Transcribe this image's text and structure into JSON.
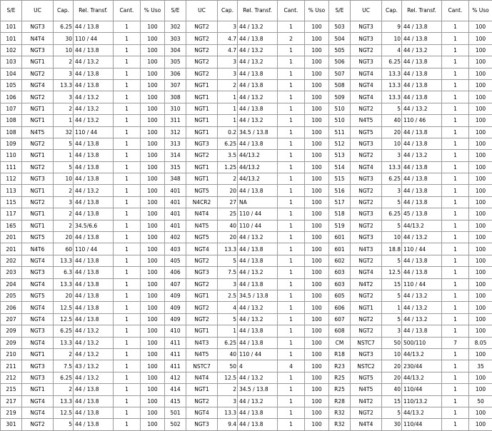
{
  "table": {
    "columns": [
      "S/E",
      "UC",
      "Cap.",
      "Rel. Transf.",
      "Cant.",
      "% Uso"
    ],
    "rows": [
      [
        "101",
        "NGT3",
        "6.25",
        "44 / 13.8",
        "1",
        "100",
        "302",
        "NGT2",
        "3",
        "44 / 13.2",
        "1",
        "100",
        "503",
        "NGT3",
        "9",
        "44 / 13.8",
        "1",
        "100"
      ],
      [
        "101",
        "N4T4",
        "30",
        "110 / 44",
        "1",
        "100",
        "303",
        "NGT2",
        "4.7",
        "44 / 13.8",
        "2",
        "100",
        "504",
        "NGT3",
        "10",
        "44 / 13.8",
        "1",
        "100"
      ],
      [
        "102",
        "NGT3",
        "10",
        "44 / 13.8",
        "1",
        "100",
        "304",
        "NGT2",
        "4.7",
        "44 / 13.2",
        "1",
        "100",
        "505",
        "NGT2",
        "4",
        "44 / 13.2",
        "1",
        "100"
      ],
      [
        "103",
        "NGT1",
        "2",
        "44 / 13.2",
        "1",
        "100",
        "305",
        "NGT2",
        "3",
        "44 / 13.2",
        "1",
        "100",
        "506",
        "NGT3",
        "6.25",
        "44 / 13.8",
        "1",
        "100"
      ],
      [
        "104",
        "NGT2",
        "3",
        "44 / 13.8",
        "1",
        "100",
        "306",
        "NGT2",
        "3",
        "44 / 13.8",
        "1",
        "100",
        "507",
        "NGT4",
        "13.3",
        "44 / 13.8",
        "1",
        "100"
      ],
      [
        "105",
        "NGT4",
        "13.3",
        "44 / 13.8",
        "1",
        "100",
        "307",
        "NGT1",
        "2",
        "44 / 13.8",
        "1",
        "100",
        "508",
        "NGT4",
        "13.3",
        "44 / 13.8",
        "1",
        "100"
      ],
      [
        "106",
        "NGT2",
        "3",
        "44 / 13.2",
        "1",
        "100",
        "308",
        "NGT1",
        "1",
        "44 / 13.2",
        "1",
        "100",
        "509",
        "NGT4",
        "13.3",
        "44 / 13.8",
        "1",
        "100"
      ],
      [
        "107",
        "NGT1",
        "2",
        "44 / 13.2",
        "1",
        "100",
        "310",
        "NGT1",
        "1",
        "44 / 13.8",
        "1",
        "100",
        "510",
        "NGT2",
        "5",
        "44 / 13.2",
        "1",
        "100"
      ],
      [
        "108",
        "NGT1",
        "1",
        "44 / 13.2",
        "1",
        "100",
        "311",
        "NGT1",
        "1",
        "44 / 13.2",
        "1",
        "100",
        "510",
        "N4T5",
        "40",
        "110 / 46",
        "1",
        "100"
      ],
      [
        "108",
        "N4T5",
        "32",
        "110 / 44",
        "1",
        "100",
        "312",
        "NGT1",
        "0.2",
        "34.5 / 13.8",
        "1",
        "100",
        "511",
        "NGT5",
        "20",
        "44 / 13.8",
        "1",
        "100"
      ],
      [
        "109",
        "NGT2",
        "5",
        "44 / 13.8",
        "1",
        "100",
        "313",
        "NGT3",
        "6.25",
        "44 / 13.8",
        "1",
        "100",
        "512",
        "NGT3",
        "10",
        "44 / 13.8",
        "1",
        "100"
      ],
      [
        "110",
        "NGT1",
        "1",
        "44 / 13.8",
        "1",
        "100",
        "314",
        "NGT2",
        "3.5",
        "44/13.2",
        "1",
        "100",
        "513",
        "NGT2",
        "3",
        "44 / 13.2",
        "1",
        "100"
      ],
      [
        "111",
        "NGT2",
        "5",
        "44 / 13.8",
        "1",
        "100",
        "315",
        "NGT1",
        "1.25",
        "44/13.2",
        "1",
        "100",
        "514",
        "NGT4",
        "13.3",
        "44 / 13.8",
        "1",
        "100"
      ],
      [
        "112",
        "NGT3",
        "10",
        "44 / 13.8",
        "1",
        "100",
        "348",
        "NGT1",
        "2",
        "44/13.2",
        "1",
        "100",
        "515",
        "NGT3",
        "6.25",
        "44 / 13.8",
        "1",
        "100"
      ],
      [
        "113",
        "NGT1",
        "2",
        "44 / 13.2",
        "1",
        "100",
        "401",
        "NGT5",
        "20",
        "44 / 13.8",
        "1",
        "100",
        "516",
        "NGT2",
        "3",
        "44 / 13.8",
        "1",
        "100"
      ],
      [
        "115",
        "NGT2",
        "3",
        "44 / 13.8",
        "1",
        "100",
        "401",
        "N4CR2",
        "27",
        "NA",
        "1",
        "100",
        "517",
        "NGT2",
        "5",
        "44 / 13.8",
        "1",
        "100"
      ],
      [
        "117",
        "NGT1",
        "2",
        "44 / 13.8",
        "1",
        "100",
        "401",
        "N4T4",
        "25",
        "110 / 44",
        "1",
        "100",
        "518",
        "NGT3",
        "6.25",
        "45 / 13.8",
        "1",
        "100"
      ],
      [
        "165",
        "NGT1",
        "2",
        "34.5/6.6",
        "1",
        "100",
        "401",
        "N4T5",
        "40",
        "110 / 44",
        "1",
        "100",
        "519",
        "NGT2",
        "5",
        "44/13.2",
        "1",
        "100"
      ],
      [
        "201",
        "NGT5",
        "20",
        "44 / 13.8",
        "1",
        "100",
        "402",
        "NGT5",
        "20",
        "44 / 13.2",
        "1",
        "100",
        "601",
        "NGT3",
        "10",
        "44 / 13.2",
        "1",
        "100"
      ],
      [
        "201",
        "N4T6",
        "60",
        "110 / 44",
        "1",
        "100",
        "403",
        "NGT4",
        "13.3",
        "44 / 13.8",
        "1",
        "100",
        "601",
        "N4T3",
        "18.8",
        "110 / 44",
        "1",
        "100"
      ],
      [
        "202",
        "NGT4",
        "13.3",
        "44 / 13.8",
        "1",
        "100",
        "405",
        "NGT2",
        "5",
        "44 / 13.8",
        "1",
        "100",
        "602",
        "NGT2",
        "5",
        "44 / 13.8",
        "1",
        "100"
      ],
      [
        "203",
        "NGT3",
        "6.3",
        "44 / 13.8",
        "1",
        "100",
        "406",
        "NGT3",
        "7.5",
        "44 / 13.2",
        "1",
        "100",
        "603",
        "NGT4",
        "12.5",
        "44 / 13.8",
        "1",
        "100"
      ],
      [
        "204",
        "NGT4",
        "13.3",
        "44 / 13.8",
        "1",
        "100",
        "407",
        "NGT2",
        "3",
        "44 / 13.8",
        "1",
        "100",
        "603",
        "N4T2",
        "15",
        "110 / 44",
        "1",
        "100"
      ],
      [
        "205",
        "NGT5",
        "20",
        "44 / 13.8",
        "1",
        "100",
        "409",
        "NGT1",
        "2.5",
        "34.5 / 13.8",
        "1",
        "100",
        "605",
        "NGT2",
        "5",
        "44 / 13.2",
        "1",
        "100"
      ],
      [
        "206",
        "NGT4",
        "12.5",
        "44 / 13.8",
        "1",
        "100",
        "409",
        "NGT2",
        "4",
        "44 / 13.2",
        "1",
        "100",
        "606",
        "NGT1",
        "1",
        "44 / 13.2",
        "1",
        "100"
      ],
      [
        "207",
        "NGT4",
        "12.5",
        "44 / 13.8",
        "1",
        "100",
        "409",
        "NGT2",
        "5",
        "44 / 13.2",
        "1",
        "100",
        "607",
        "NGT2",
        "5",
        "44 / 13.2",
        "1",
        "100"
      ],
      [
        "209",
        "NGT3",
        "6.25",
        "44 / 13.2",
        "1",
        "100",
        "410",
        "NGT1",
        "1",
        "44 / 13.8",
        "1",
        "100",
        "608",
        "NGT2",
        "3",
        "44 / 13.8",
        "1",
        "100"
      ],
      [
        "209",
        "NGT4",
        "13.3",
        "44 / 13.2",
        "1",
        "100",
        "411",
        "N4T3",
        "6.25",
        "44 / 13.8",
        "1",
        "100",
        "CM",
        "NSTC7",
        "50",
        "500/110",
        "7",
        "8.05"
      ],
      [
        "210",
        "NGT1",
        "2",
        "44 / 13.2",
        "1",
        "100",
        "411",
        "N4T5",
        "40",
        "110 / 44",
        "1",
        "100",
        "R18",
        "NGT3",
        "10",
        "44/13.2",
        "1",
        "100"
      ],
      [
        "211",
        "NGT3",
        "7.5",
        "43 / 13.2",
        "1",
        "100",
        "411",
        "NSTC7",
        "50",
        "4",
        "4",
        "100",
        "R23",
        "NSTC2",
        "20",
        "230/44",
        "1",
        "35"
      ],
      [
        "212",
        "NGT3",
        "6.25",
        "44 / 13.2",
        "1",
        "100",
        "412",
        "N4T4",
        "12.5",
        "44 / 13.2",
        "1",
        "100",
        "R25",
        "NGT5",
        "20",
        "44/13.2",
        "1",
        "100"
      ],
      [
        "215",
        "NGT1",
        "2",
        "44 / 13.8",
        "1",
        "100",
        "414",
        "NGT1",
        "2",
        "34.5 / 13.8",
        "1",
        "100",
        "R25",
        "N4T5",
        "40",
        "110/44",
        "1",
        "100"
      ],
      [
        "217",
        "NGT4",
        "13.3",
        "44 / 13.8",
        "1",
        "100",
        "415",
        "NGT2",
        "3",
        "44 / 13.2",
        "1",
        "100",
        "R28",
        "N4T2",
        "15",
        "110/13.2",
        "1",
        "50"
      ],
      [
        "219",
        "NGT4",
        "12.5",
        "44 / 13.8",
        "1",
        "100",
        "501",
        "NGT4",
        "13.3",
        "44 / 13.8",
        "1",
        "100",
        "R32",
        "NGT2",
        "5",
        "44/13.2",
        "1",
        "100"
      ],
      [
        "301",
        "NGT2",
        "5",
        "44 / 13.8",
        "1",
        "100",
        "502",
        "NGT3",
        "9.4",
        "44 / 13.8",
        "1",
        "100",
        "R32",
        "N4T4",
        "30",
        "110/44",
        "1",
        "100"
      ]
    ]
  }
}
